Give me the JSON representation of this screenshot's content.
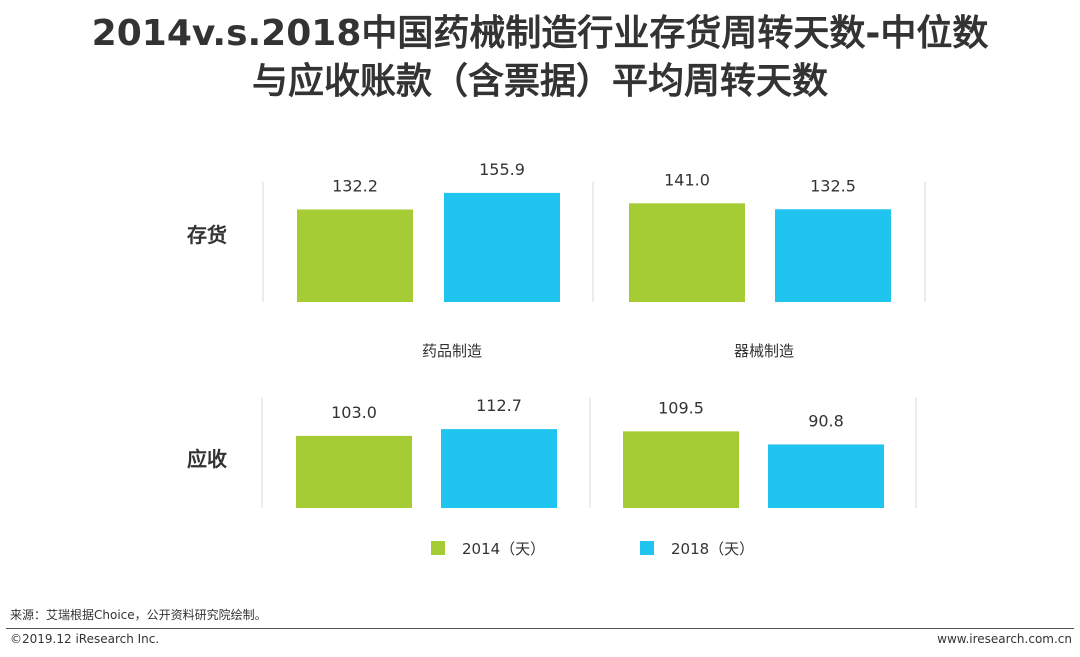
{
  "page": {
    "title_line1": "2014v.s.2018中国药械制造行业存货周转天数-中位数",
    "title_line2": "与应收账款（含票据）平均周转天数",
    "source": "来源：艾瑞根据Choice，公开资料研究院绘制。",
    "copyright": "©2019.12 iResearch Inc.",
    "site": "www.iresearch.com.cn"
  },
  "colors": {
    "s2014": "#a6cc35",
    "s2018": "#1fc4ef",
    "axis": "#d9d9d9"
  },
  "chart_data": {
    "type": "bar",
    "title": "2014v.s.2018中国药械制造行业存货周转天数-中位数与应收账款（含票据）平均周转天数",
    "categories": [
      "药品制造",
      "器械制造"
    ],
    "rows": [
      {
        "label": "存货",
        "values": {
          "2014": [
            132.2,
            141.0
          ],
          "2018": [
            155.9,
            132.5
          ]
        }
      },
      {
        "label": "应收",
        "values": {
          "2014": [
            103.0,
            109.5
          ],
          "2018": [
            112.7,
            90.8
          ]
        }
      }
    ],
    "series": [
      {
        "name": "2014（天）",
        "key": "2014"
      },
      {
        "name": "2018（天）",
        "key": "2018"
      }
    ],
    "legend": "bottom-center",
    "value_labels": true
  }
}
